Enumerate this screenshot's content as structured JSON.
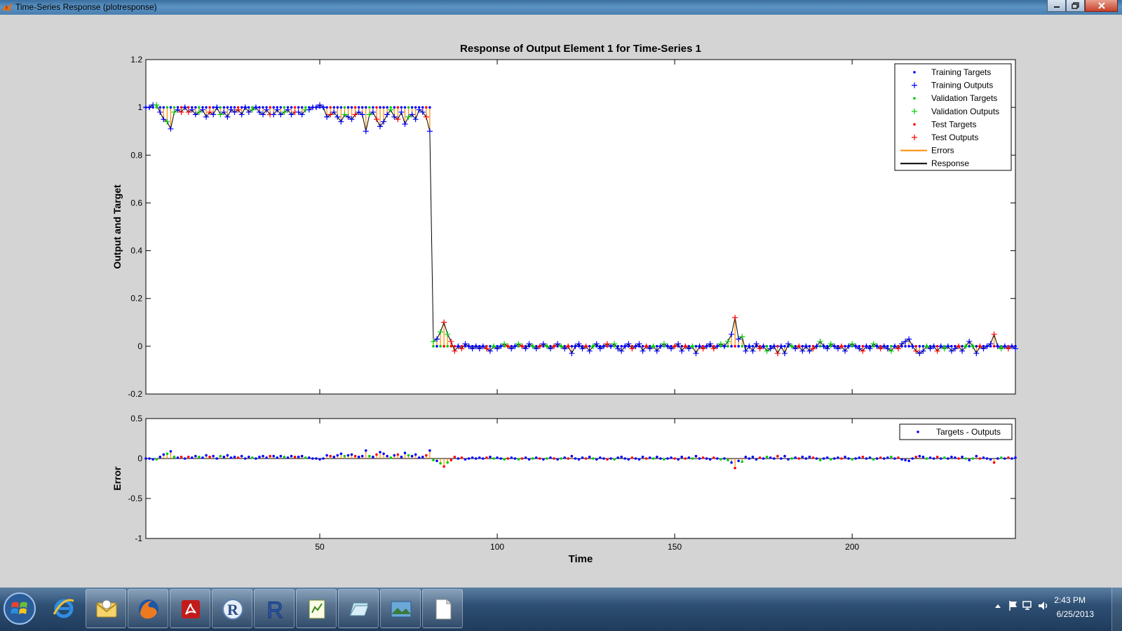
{
  "window": {
    "title": "Time-Series Response (plotresponse)",
    "icon": "matlab-icon",
    "controls": [
      "minimize-icon",
      "maximize-icon",
      "close-icon"
    ]
  },
  "chart_data": [
    {
      "type": "scatter",
      "title": "Response of Output Element 1 for Time-Series 1",
      "xlabel": "",
      "ylabel": "Output and Target",
      "xlim": [
        1,
        246
      ],
      "ylim": [
        -0.2,
        1.2
      ],
      "xticks": [
        50,
        100,
        150,
        200
      ],
      "xtick_labels": [
        "",
        "",
        "",
        ""
      ],
      "yticks": [
        -0.2,
        0,
        0.2,
        0.4,
        0.6,
        0.8,
        1,
        1.2
      ],
      "ytick_labels": [
        "-0.2",
        "0",
        "0.2",
        "0.4",
        "0.6",
        "0.8",
        "1",
        "1.2"
      ],
      "grid": false,
      "legend_position": "top-right",
      "legend": [
        {
          "label": "Training Targets",
          "marker": "dot",
          "color": "#0000ff"
        },
        {
          "label": "Training Outputs",
          "marker": "plus",
          "color": "#0000ff"
        },
        {
          "label": "Validation Targets",
          "marker": "dot",
          "color": "#00cc00"
        },
        {
          "label": "Validation Outputs",
          "marker": "plus",
          "color": "#00cc00"
        },
        {
          "label": "Test Targets",
          "marker": "dot",
          "color": "#ff0000"
        },
        {
          "label": "Test Outputs",
          "marker": "plus",
          "color": "#ff0000"
        },
        {
          "label": "Errors",
          "marker": "line",
          "color": "#ff8c00"
        },
        {
          "label": "Response",
          "marker": "line",
          "color": "#000000"
        }
      ],
      "step": {
        "x_last_high": 81,
        "x_first_low": 82,
        "target_high": 1,
        "target_low": 0
      },
      "output_values": [
        [
          1,
          1.0
        ],
        [
          2,
          1.0
        ],
        [
          3,
          1.01
        ],
        [
          4,
          1.01
        ],
        [
          5,
          0.98
        ],
        [
          6,
          0.95
        ],
        [
          7,
          0.94
        ],
        [
          8,
          0.91
        ],
        [
          9,
          0.98
        ],
        [
          10,
          0.99
        ],
        [
          11,
          0.98
        ],
        [
          12,
          1.0
        ],
        [
          13,
          0.98
        ],
        [
          14,
          0.99
        ],
        [
          15,
          0.97
        ],
        [
          16,
          0.98
        ],
        [
          17,
          0.99
        ],
        [
          18,
          0.96
        ],
        [
          19,
          0.98
        ],
        [
          20,
          0.97
        ],
        [
          21,
          1.0
        ],
        [
          22,
          0.97
        ],
        [
          23,
          0.98
        ],
        [
          24,
          0.96
        ],
        [
          25,
          0.99
        ],
        [
          26,
          0.98
        ],
        [
          27,
          0.99
        ],
        [
          28,
          0.97
        ],
        [
          29,
          1.0
        ],
        [
          30,
          0.98
        ],
        [
          31,
          0.99
        ],
        [
          32,
          1.0
        ],
        [
          33,
          0.98
        ],
        [
          34,
          0.97
        ],
        [
          35,
          0.99
        ],
        [
          36,
          0.97
        ],
        [
          37,
          0.97
        ],
        [
          38,
          0.99
        ],
        [
          39,
          0.97
        ],
        [
          40,
          0.98
        ],
        [
          41,
          0.99
        ],
        [
          42,
          0.97
        ],
        [
          43,
          0.98
        ],
        [
          44,
          0.98
        ],
        [
          45,
          0.97
        ],
        [
          46,
          0.99
        ],
        [
          47,
          0.99
        ],
        [
          48,
          1.0
        ],
        [
          49,
          1.0
        ],
        [
          50,
          1.01
        ],
        [
          51,
          1.0
        ],
        [
          52,
          0.96
        ],
        [
          53,
          0.97
        ],
        [
          54,
          0.98
        ],
        [
          55,
          0.96
        ],
        [
          56,
          0.94
        ],
        [
          57,
          0.97
        ],
        [
          58,
          0.96
        ],
        [
          59,
          0.95
        ],
        [
          60,
          0.97
        ],
        [
          61,
          0.98
        ],
        [
          62,
          0.97
        ],
        [
          63,
          0.9
        ],
        [
          64,
          0.97
        ],
        [
          65,
          0.98
        ],
        [
          66,
          0.95
        ],
        [
          67,
          0.92
        ],
        [
          68,
          0.94
        ],
        [
          69,
          0.97
        ],
        [
          70,
          0.99
        ],
        [
          71,
          0.96
        ],
        [
          72,
          0.95
        ],
        [
          73,
          0.98
        ],
        [
          74,
          0.93
        ],
        [
          75,
          0.96
        ],
        [
          76,
          0.97
        ],
        [
          77,
          0.95
        ],
        [
          78,
          0.99
        ],
        [
          79,
          0.98
        ],
        [
          80,
          0.96
        ],
        [
          81,
          0.9
        ],
        [
          82,
          0.02
        ],
        [
          83,
          0.03
        ],
        [
          84,
          0.06
        ],
        [
          85,
          0.1
        ],
        [
          86,
          0.05
        ],
        [
          87,
          0.02
        ],
        [
          88,
          -0.02
        ],
        [
          89,
          0.0
        ],
        [
          90,
          -0.01
        ],
        [
          91,
          0.01
        ],
        [
          92,
          0.0
        ],
        [
          93,
          -0.01
        ],
        [
          94,
          0.0
        ],
        [
          95,
          -0.01
        ],
        [
          96,
          0.0
        ],
        [
          97,
          -0.01
        ],
        [
          98,
          -0.02
        ],
        [
          99,
          0.0
        ],
        [
          100,
          -0.01
        ],
        [
          101,
          0.0
        ],
        [
          102,
          0.01
        ],
        [
          103,
          0.0
        ],
        [
          104,
          -0.01
        ],
        [
          105,
          0.0
        ],
        [
          106,
          0.01
        ],
        [
          107,
          0.0
        ],
        [
          108,
          -0.01
        ],
        [
          109,
          0.01
        ],
        [
          110,
          0.0
        ],
        [
          111,
          -0.01
        ],
        [
          112,
          0.0
        ],
        [
          113,
          0.01
        ],
        [
          114,
          0.0
        ],
        [
          115,
          -0.01
        ],
        [
          116,
          0.0
        ],
        [
          117,
          0.01
        ],
        [
          118,
          0.0
        ],
        [
          119,
          -0.01
        ],
        [
          120,
          0.0
        ],
        [
          121,
          -0.03
        ],
        [
          122,
          0.0
        ],
        [
          123,
          0.01
        ],
        [
          124,
          -0.01
        ],
        [
          125,
          0.0
        ],
        [
          126,
          -0.02
        ],
        [
          127,
          0.0
        ],
        [
          128,
          0.01
        ],
        [
          129,
          -0.01
        ],
        [
          130,
          0.0
        ],
        [
          131,
          0.01
        ],
        [
          132,
          0.0
        ],
        [
          133,
          0.01
        ],
        [
          134,
          -0.01
        ],
        [
          135,
          -0.02
        ],
        [
          136,
          0.0
        ],
        [
          137,
          0.01
        ],
        [
          138,
          -0.01
        ],
        [
          139,
          0.0
        ],
        [
          140,
          0.01
        ],
        [
          141,
          -0.02
        ],
        [
          142,
          0.0
        ],
        [
          143,
          -0.01
        ],
        [
          144,
          0.0
        ],
        [
          145,
          -0.02
        ],
        [
          146,
          0.0
        ],
        [
          147,
          0.01
        ],
        [
          148,
          0.0
        ],
        [
          149,
          -0.01
        ],
        [
          150,
          0.0
        ],
        [
          151,
          0.01
        ],
        [
          152,
          -0.02
        ],
        [
          153,
          0.0
        ],
        [
          154,
          -0.01
        ],
        [
          155,
          0.0
        ],
        [
          156,
          -0.03
        ],
        [
          157,
          0.0
        ],
        [
          158,
          -0.01
        ],
        [
          159,
          0.0
        ],
        [
          160,
          0.01
        ],
        [
          161,
          -0.01
        ],
        [
          162,
          0.0
        ],
        [
          163,
          0.01
        ],
        [
          164,
          0.0
        ],
        [
          165,
          0.02
        ],
        [
          166,
          0.05
        ],
        [
          167,
          0.12
        ],
        [
          168,
          0.03
        ],
        [
          169,
          0.04
        ],
        [
          170,
          -0.02
        ],
        [
          171,
          0.0
        ],
        [
          172,
          -0.02
        ],
        [
          173,
          0.01
        ],
        [
          174,
          -0.01
        ],
        [
          175,
          0.0
        ],
        [
          176,
          -0.02
        ],
        [
          177,
          -0.01
        ],
        [
          178,
          0.0
        ],
        [
          179,
          -0.03
        ],
        [
          180,
          0.0
        ],
        [
          181,
          -0.03
        ],
        [
          182,
          0.01
        ],
        [
          183,
          0.0
        ],
        [
          184,
          -0.01
        ],
        [
          185,
          0.0
        ],
        [
          186,
          -0.02
        ],
        [
          187,
          0.0
        ],
        [
          188,
          -0.02
        ],
        [
          189,
          -0.01
        ],
        [
          190,
          0.0
        ],
        [
          191,
          0.02
        ],
        [
          192,
          0.0
        ],
        [
          193,
          -0.01
        ],
        [
          194,
          0.01
        ],
        [
          195,
          0.0
        ],
        [
          196,
          -0.01
        ],
        [
          197,
          0.0
        ],
        [
          198,
          -0.02
        ],
        [
          199,
          0.0
        ],
        [
          200,
          0.01
        ],
        [
          201,
          0.0
        ],
        [
          202,
          -0.01
        ],
        [
          203,
          -0.02
        ],
        [
          204,
          0.0
        ],
        [
          205,
          -0.01
        ],
        [
          206,
          0.01
        ],
        [
          207,
          0.0
        ],
        [
          208,
          -0.01
        ],
        [
          209,
          0.0
        ],
        [
          210,
          -0.01
        ],
        [
          211,
          -0.02
        ],
        [
          212,
          0.0
        ],
        [
          213,
          -0.01
        ],
        [
          214,
          0.01
        ],
        [
          215,
          0.02
        ],
        [
          216,
          0.03
        ],
        [
          217,
          0.0
        ],
        [
          218,
          -0.02
        ],
        [
          219,
          -0.03
        ],
        [
          220,
          -0.02
        ],
        [
          221,
          0.0
        ],
        [
          222,
          -0.01
        ],
        [
          223,
          0.0
        ],
        [
          224,
          -0.02
        ],
        [
          225,
          0.0
        ],
        [
          226,
          -0.01
        ],
        [
          227,
          0.0
        ],
        [
          228,
          -0.02
        ],
        [
          229,
          -0.01
        ],
        [
          230,
          0.0
        ],
        [
          231,
          -0.02
        ],
        [
          232,
          0.0
        ],
        [
          233,
          0.02
        ],
        [
          234,
          0.0
        ],
        [
          235,
          -0.03
        ],
        [
          236,
          0.0
        ],
        [
          237,
          -0.01
        ],
        [
          238,
          0.0
        ],
        [
          239,
          0.01
        ],
        [
          240,
          0.05
        ],
        [
          241,
          0.0
        ],
        [
          242,
          -0.01
        ],
        [
          243,
          0.0
        ],
        [
          244,
          -0.01
        ],
        [
          245,
          0.0
        ],
        [
          246,
          -0.01
        ]
      ],
      "test_indices": [
        11,
        13,
        19,
        27,
        36,
        43,
        53,
        60,
        66,
        72,
        80,
        85,
        87,
        88,
        90,
        97,
        103,
        107,
        112,
        116,
        120,
        125,
        131,
        138,
        142,
        150,
        153,
        158,
        161,
        167,
        174,
        179,
        185,
        189,
        197,
        203,
        208,
        213,
        218,
        224,
        230,
        236,
        240,
        244
      ],
      "validation_indices": [
        4,
        7,
        9,
        16,
        22,
        31,
        40,
        46,
        57,
        64,
        70,
        75,
        82,
        84,
        86,
        99,
        102,
        106,
        110,
        114,
        118,
        127,
        133,
        144,
        147,
        155,
        163,
        165,
        169,
        176,
        183,
        191,
        194,
        200,
        206,
        211,
        221,
        226,
        232,
        234,
        242
      ]
    },
    {
      "type": "scatter",
      "title": "",
      "xlabel": "Time",
      "ylabel": "Error",
      "xlim": [
        1,
        246
      ],
      "ylim": [
        -1,
        0.5
      ],
      "xticks": [
        50,
        100,
        150,
        200
      ],
      "xtick_labels": [
        "50",
        "100",
        "150",
        "200"
      ],
      "yticks": [
        -1,
        -0.5,
        0,
        0.5
      ],
      "ytick_labels": [
        "-1",
        "-0.5",
        "0",
        "0.5"
      ],
      "grid": false,
      "legend_position": "top-right",
      "legend": [
        {
          "label": "Targets - Outputs",
          "marker": "dot",
          "color": "#0000ff"
        }
      ],
      "series_note": "error = target - output"
    }
  ],
  "taskbar": {
    "apps": [
      "windows-start-icon",
      "internet-explorer-icon",
      "outlook-icon",
      "firefox-icon",
      "acrobat-icon",
      "r-icon",
      "r-studio-icon",
      "notepad-icon",
      "folder-icon",
      "photo-viewer-icon",
      "blank-document-icon"
    ],
    "clock_time": "2:43 PM",
    "clock_date": "6/25/2013"
  },
  "colors": {
    "figure_bg": "#d4d4d4",
    "axes_bg": "#ffffff",
    "training": "#0000ff",
    "validation": "#00cc00",
    "test": "#ff0000",
    "errors": "#ff8c00",
    "response": "#000000"
  }
}
